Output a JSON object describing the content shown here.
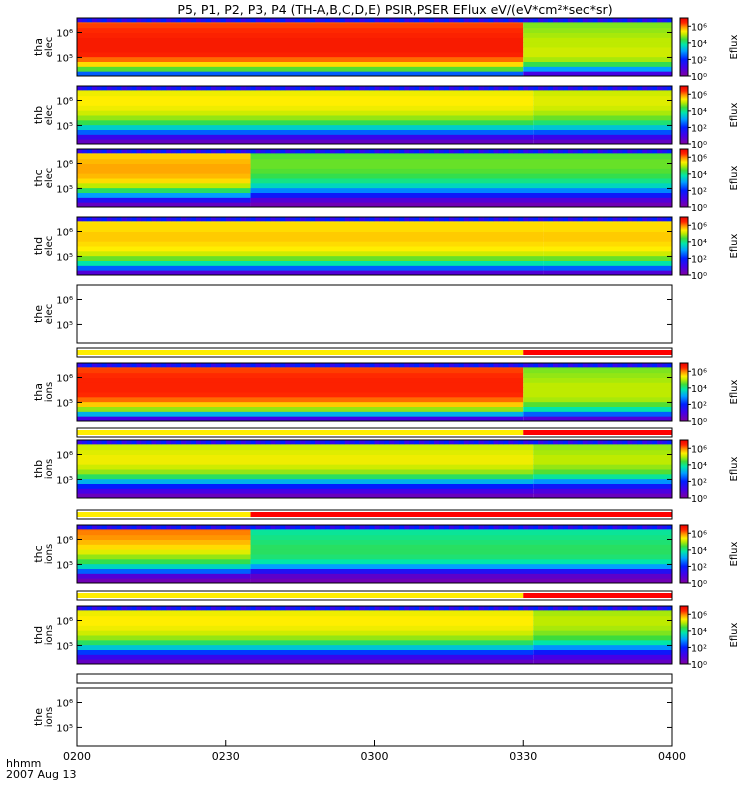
{
  "chart_data": {
    "type": "heatmap",
    "title": "P5, P1, P2, P3, P4 (TH-A,B,C,D,E) PSIR,PSER EFlux eV/(eV*cm²*sec*sr)",
    "time_axis": {
      "ticks": [
        "0200",
        "0230",
        "0300",
        "0330",
        "0400"
      ],
      "range": [
        "0200",
        "0400"
      ],
      "format_label": "hhmm",
      "date_label": "2007 Aug 13"
    },
    "colorbar": {
      "label": "Eflux",
      "ticks": [
        "10⁰",
        "10²",
        "10⁴",
        "10⁶"
      ],
      "scale": "log",
      "range": [
        0,
        7
      ]
    },
    "yaxis_ticks": [
      "10⁵",
      "10⁶"
    ],
    "panels": [
      {
        "id": "tha_elec",
        "label_line1": "tha",
        "label_line2": "elec",
        "has_data": true,
        "rows_log_eflux": [
          2.5,
          4.5,
          5.5,
          6.1,
          6.5,
          6.6,
          6.6,
          6.6,
          6.5,
          6.4,
          6.3,
          6.1
        ],
        "change_hhmm": "0330",
        "after_rows_log_eflux": [
          1.0,
          3.0,
          4.3,
          4.9,
          5.1,
          5.1,
          5.0,
          5.0,
          4.9,
          4.8,
          4.7,
          4.6
        ]
      },
      {
        "id": "thb_elec",
        "label_line1": "thb",
        "label_line2": "elec",
        "has_data": true,
        "rows_log_eflux": [
          0.5,
          1.2,
          2.5,
          3.5,
          4.3,
          4.8,
          5.1,
          5.3,
          5.4,
          5.4,
          5.3,
          5.2
        ],
        "change_hhmm": "0332",
        "after_rows_log_eflux": [
          0.5,
          1.2,
          2.4,
          3.4,
          4.1,
          4.6,
          4.9,
          5.1,
          5.2,
          5.2,
          5.1,
          5.0
        ]
      },
      {
        "id": "thc_elec",
        "label_line1": "thc",
        "label_line2": "elec",
        "has_data": true,
        "rows_log_eflux": [
          0.5,
          1.5,
          3.0,
          4.2,
          5.0,
          5.5,
          5.7,
          5.8,
          5.8,
          5.7,
          5.6,
          5.5
        ],
        "change_hhmm": "0235",
        "after_rows_log_eflux": [
          0.3,
          0.8,
          1.8,
          2.8,
          3.6,
          4.0,
          4.3,
          4.5,
          4.6,
          4.6,
          4.5,
          4.4
        ]
      },
      {
        "id": "thd_elec",
        "label_line1": "thd",
        "label_line2": "elec",
        "has_data": true,
        "rows_log_eflux": [
          0.8,
          2.5,
          3.8,
          4.6,
          5.1,
          5.4,
          5.5,
          5.6,
          5.6,
          5.5,
          5.5,
          5.4
        ],
        "change_hhmm": "0334",
        "after_rows_log_eflux": [
          0.8,
          2.5,
          3.8,
          4.6,
          5.1,
          5.4,
          5.5,
          5.6,
          5.6,
          5.5,
          5.5,
          5.4
        ]
      },
      {
        "id": "the_elec",
        "label_line1": "the",
        "label_line2": "elec",
        "has_data": false
      },
      {
        "id": "tha_ions",
        "label_line1": "tha",
        "label_line2": "ions",
        "has_data": true,
        "rows_log_eflux": [
          1.0,
          3.2,
          4.8,
          5.6,
          6.1,
          6.4,
          6.5,
          6.5,
          6.5,
          6.4,
          6.3,
          6.2
        ],
        "change_hhmm": "0330",
        "after_rows_log_eflux": [
          0.8,
          2.5,
          3.8,
          4.5,
          4.9,
          5.0,
          5.0,
          5.0,
          4.9,
          4.8,
          4.7,
          4.6
        ]
      },
      {
        "id": "thb_ions",
        "label_line1": "thb",
        "label_line2": "ions",
        "has_data": true,
        "rows_log_eflux": [
          0.4,
          1.0,
          2.0,
          3.2,
          4.2,
          4.8,
          5.1,
          5.3,
          5.3,
          5.2,
          5.1,
          5.0
        ],
        "change_hhmm": "0332",
        "after_rows_log_eflux": [
          0.4,
          0.9,
          1.8,
          2.9,
          3.9,
          4.5,
          4.8,
          5.0,
          5.0,
          4.9,
          4.8,
          4.7
        ]
      },
      {
        "id": "thc_ions",
        "label_line1": "thc",
        "label_line2": "ions",
        "has_data": true,
        "rows_log_eflux": [
          0.3,
          0.8,
          2.5,
          3.6,
          4.3,
          4.8,
          5.2,
          5.5,
          5.7,
          5.9,
          6.0,
          6.1
        ],
        "change_hhmm": "0235",
        "after_rows_log_eflux": [
          0.3,
          0.6,
          1.5,
          3.0,
          3.8,
          4.1,
          4.2,
          4.2,
          4.1,
          4.0,
          3.9,
          3.8
        ]
      },
      {
        "id": "thd_ions",
        "label_line1": "thd",
        "label_line2": "ions",
        "has_data": true,
        "rows_log_eflux": [
          0.5,
          1.2,
          2.2,
          3.4,
          4.2,
          4.8,
          5.1,
          5.3,
          5.4,
          5.4,
          5.3,
          5.2
        ],
        "change_hhmm": "0332",
        "after_rows_log_eflux": [
          0.5,
          1.0,
          1.8,
          2.9,
          3.8,
          4.4,
          4.7,
          4.9,
          5.0,
          5.0,
          4.9,
          4.8
        ]
      },
      {
        "id": "the_ions",
        "label_line1": "the",
        "label_line2": "ions",
        "has_data": false
      }
    ],
    "mode_bars": [
      {
        "id": "bar_after_the_elec",
        "segments": [
          {
            "from": "0200",
            "to": "0330",
            "color": "#ffee00"
          },
          {
            "from": "0330",
            "to": "0400",
            "color": "#ff0000"
          }
        ]
      },
      {
        "id": "bar_after_tha_ions",
        "segments": [
          {
            "from": "0200",
            "to": "0330",
            "color": "#ffee00"
          },
          {
            "from": "0330",
            "to": "0400",
            "color": "#ff0000"
          }
        ]
      },
      {
        "id": "bar_after_thb_ions",
        "segments": [
          {
            "from": "0200",
            "to": "0235",
            "color": "#ffee00"
          },
          {
            "from": "0235",
            "to": "0400",
            "color": "#ff0000"
          }
        ]
      },
      {
        "id": "bar_after_thc_ions",
        "segments": [
          {
            "from": "0200",
            "to": "0330",
            "color": "#ffee00"
          },
          {
            "from": "0330",
            "to": "0400",
            "color": "#ff0000"
          }
        ]
      },
      {
        "id": "bar_after_thd_ions",
        "segments": []
      }
    ]
  }
}
